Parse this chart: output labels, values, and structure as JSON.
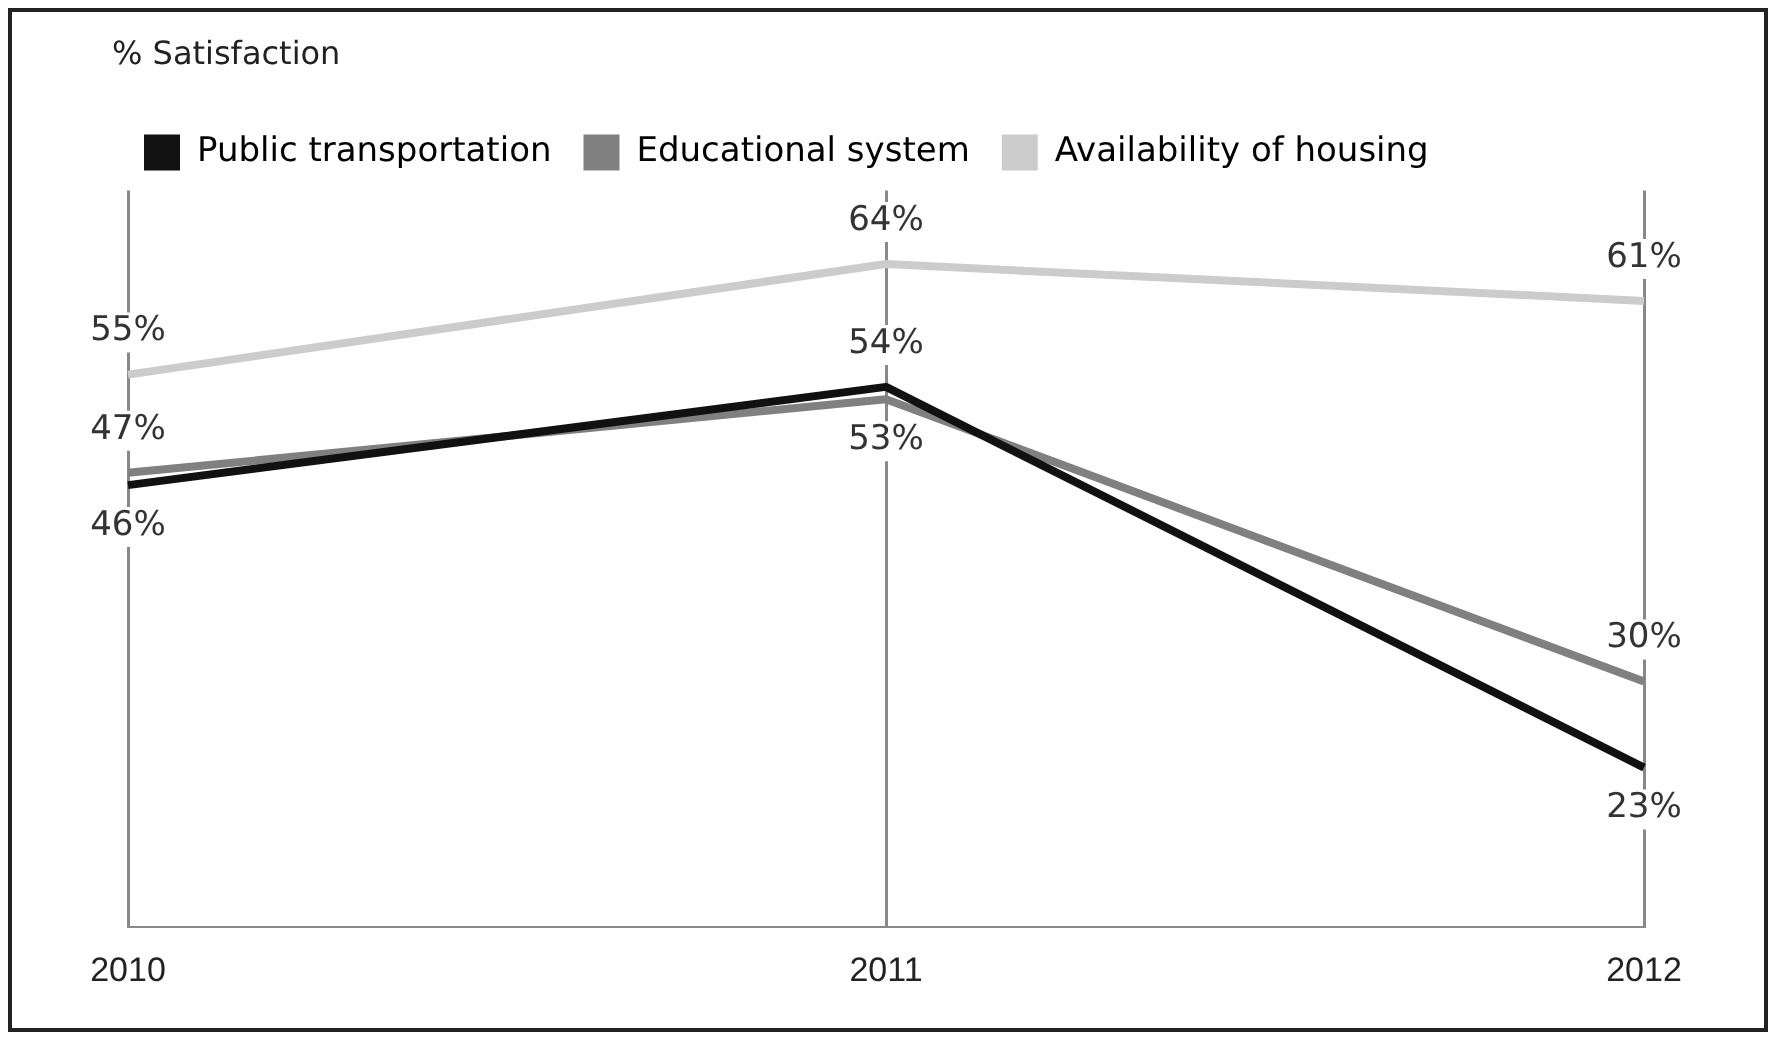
{
  "chart_data": {
    "type": "line",
    "title": "% Satisfaction",
    "categories": [
      "2010",
      "2011",
      "2012"
    ],
    "series": [
      {
        "name": "Public transportation",
        "color": "#111111",
        "values": [
          46,
          54,
          23
        ],
        "value_labels": [
          "46%",
          "54%",
          "23%"
        ]
      },
      {
        "name": "Educational system",
        "color": "#808080",
        "values": [
          47,
          53,
          30
        ],
        "value_labels": [
          "47%",
          "53%",
          "30%"
        ]
      },
      {
        "name": "Availability of housing",
        "color": "#cccccc",
        "values": [
          55,
          64,
          61
        ],
        "value_labels": [
          "55%",
          "64%",
          "61%"
        ]
      }
    ],
    "grid": "x",
    "legend": "top",
    "marker": "none",
    "line_style": "solid",
    "tick_labels": "x"
  }
}
